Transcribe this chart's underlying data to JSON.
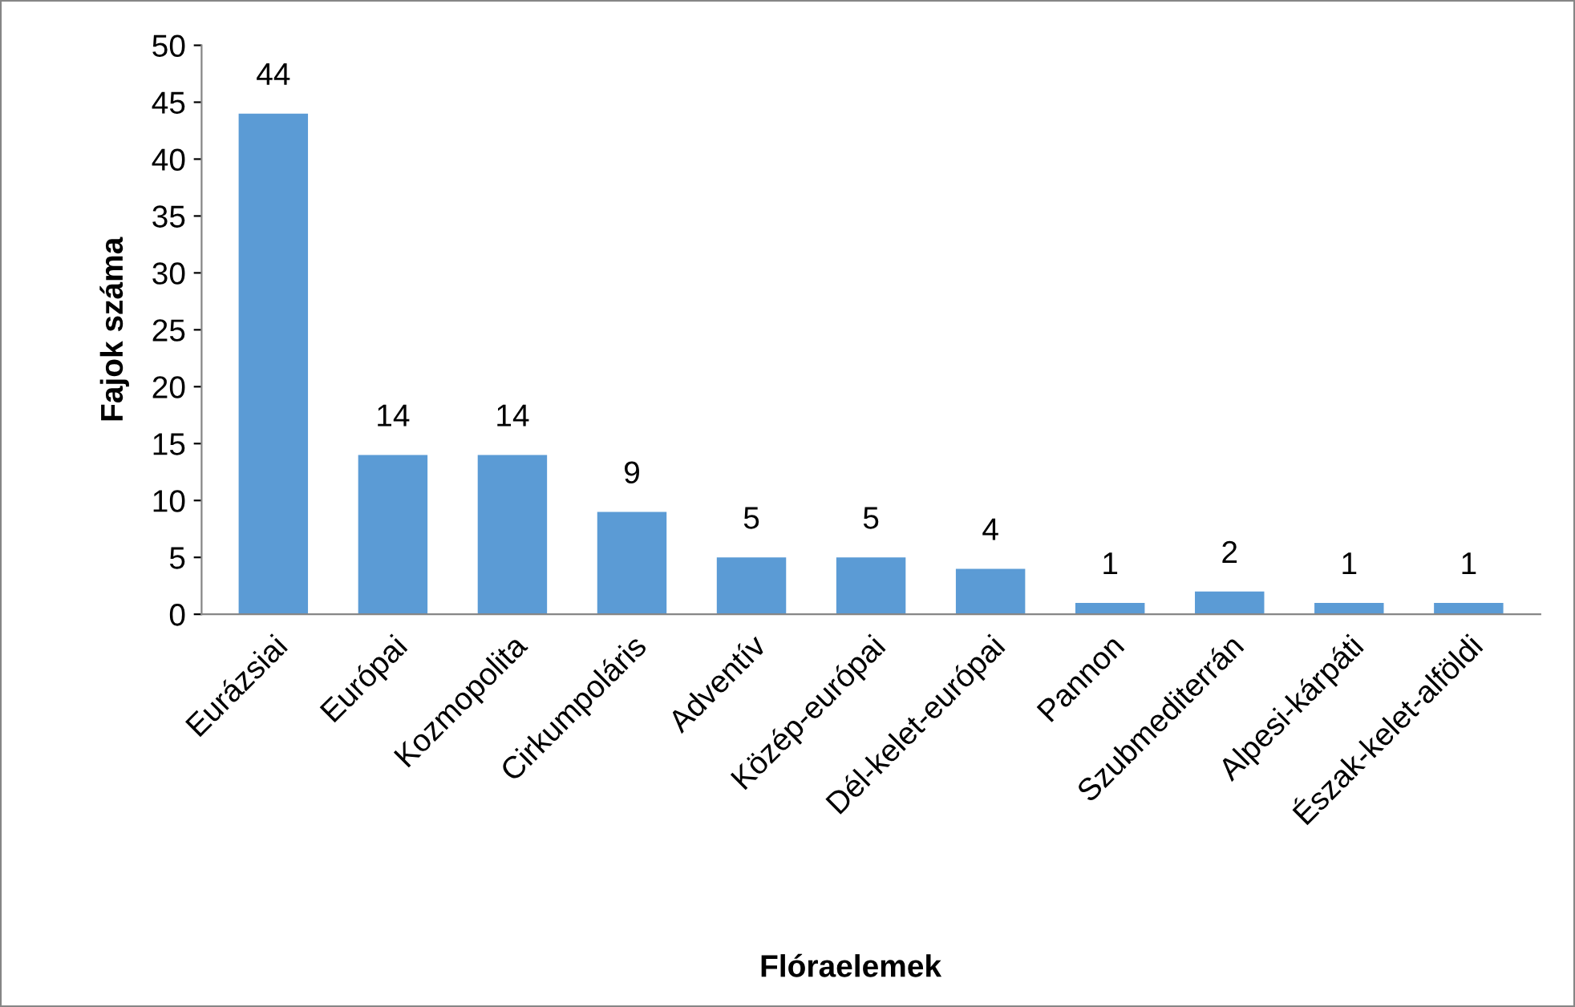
{
  "chart_data": {
    "type": "bar",
    "xlabel": "Flóraelemek",
    "ylabel": "Fajok száma",
    "categories": [
      "Eurázsiai",
      "Európai",
      "Kozmopolita",
      "Cirkumpoláris",
      "Adventív",
      "Közép-európai",
      "Dél-kelet-európai",
      "Pannon",
      "Szubmediterrán",
      "Alpesi-kárpáti",
      "Észak-kelet-alföldi"
    ],
    "values": [
      44,
      14,
      14,
      9,
      5,
      5,
      4,
      1,
      2,
      1,
      1
    ],
    "color": "#5b9bd5",
    "ylim": [
      0,
      50
    ],
    "yticks": [
      0,
      5,
      10,
      15,
      20,
      25,
      30,
      35,
      40,
      45,
      50
    ],
    "data_labels": true,
    "grid": false,
    "legend": false
  }
}
